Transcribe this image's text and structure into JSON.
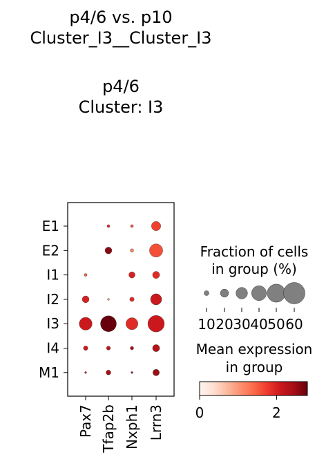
{
  "title": {
    "line1": "p4/6 vs. p10",
    "line2": "Cluster_I3__Cluster_I3",
    "line3": "p4/6",
    "line4": "Cluster: I3"
  },
  "chart_data": {
    "type": "dotplot",
    "genes": [
      "Pax7",
      "Tfap2b",
      "Nxph1",
      "Lrrn3"
    ],
    "groups": [
      "E1",
      "E2",
      "I1",
      "I2",
      "I3",
      "I4",
      "M1"
    ],
    "fraction": [
      [
        0,
        2,
        2,
        22
      ],
      [
        0,
        12,
        3,
        45
      ],
      [
        2,
        0,
        10,
        13
      ],
      [
        12,
        1,
        5,
        32
      ],
      [
        42,
        65,
        37,
        70
      ],
      [
        5,
        4,
        3,
        13
      ],
      [
        1,
        6,
        1,
        11
      ]
    ],
    "mean_expression": [
      [
        0,
        1.9,
        1.6,
        1.7
      ],
      [
        0,
        2.6,
        1.2,
        1.6
      ],
      [
        1.5,
        0,
        2.0,
        1.9
      ],
      [
        2.0,
        1.0,
        1.9,
        2.1
      ],
      [
        2.1,
        2.8,
        1.9,
        2.1
      ],
      [
        2.1,
        2.2,
        2.4,
        2.3
      ],
      [
        2.2,
        2.4,
        2.5,
        2.5
      ]
    ],
    "size_legend": {
      "title_line1": "Fraction of cells",
      "title_line2": "in group (%)",
      "values": [
        10,
        20,
        30,
        40,
        50,
        60
      ],
      "labels": [
        "10",
        "20",
        "30",
        "40",
        "50",
        "60"
      ]
    },
    "color_legend": {
      "title_line1": "Mean expression",
      "title_line2": "in group",
      "min": 0,
      "max": 2.8,
      "tick_values": [
        0,
        2
      ],
      "tick_labels": [
        "0",
        "2"
      ],
      "colormap": "Reds",
      "color_low": "#fff5f0",
      "color_mid": "#fb6a4a",
      "color_high": "#67000d"
    }
  }
}
